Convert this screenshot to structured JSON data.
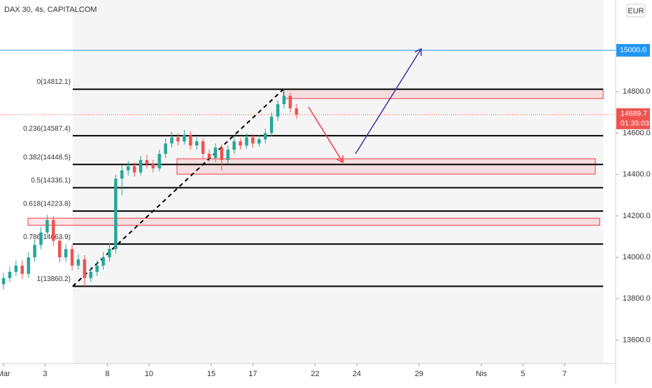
{
  "chart_data": {
    "type": "candlestick",
    "title": "DAX 30, 4s, CAPITALCOM",
    "currency": "EUR",
    "x": [
      0,
      0.3,
      0.6,
      0.9,
      1.2,
      1.5,
      1.8,
      2.1,
      2.4,
      2.7,
      3.0,
      3.3,
      3.6,
      3.9,
      4.2,
      4.5,
      4.8,
      5.1,
      5.4,
      5.7,
      6.0,
      6.3,
      6.6,
      6.9,
      7.2,
      7.5,
      7.8,
      8.1,
      8.4,
      8.7,
      9.0,
      9.3,
      9.6,
      9.9,
      10.2,
      10.5,
      10.8,
      11.1,
      11.4,
      11.7,
      12.0,
      12.3,
      12.6,
      12.9,
      13.2,
      13.5,
      13.8,
      14.1
    ],
    "open": [
      13870,
      13900,
      13930,
      13960,
      13920,
      14000,
      14060,
      14120,
      14180,
      14080,
      14000,
      14040,
      13960,
      13990,
      13900,
      13930,
      13960,
      14000,
      14040,
      14380,
      14420,
      14440,
      14410,
      14470,
      14450,
      14430,
      14500,
      14550,
      14580,
      14560,
      14590,
      14540,
      14560,
      14500,
      14480,
      14530,
      14470,
      14520,
      14560,
      14540,
      14580,
      14550,
      14570,
      14600,
      14680,
      14740,
      14780,
      14720
    ],
    "high": [
      13925,
      13955,
      13985,
      13985,
      14025,
      14085,
      14145,
      14205,
      14200,
      14100,
      14065,
      14060,
      14015,
      14010,
      13955,
      13985,
      14025,
      14070,
      14400,
      14445,
      14465,
      14460,
      14490,
      14495,
      14470,
      14520,
      14575,
      14605,
      14600,
      14615,
      14610,
      14580,
      14575,
      14520,
      14550,
      14545,
      14540,
      14580,
      14575,
      14600,
      14595,
      14590,
      14620,
      14700,
      14760,
      14812.1,
      14795,
      14740
    ],
    "low": [
      13845,
      13880,
      13910,
      13895,
      13900,
      13980,
      14040,
      14100,
      14055,
      13975,
      13980,
      13935,
      13940,
      13860.2,
      13880,
      13910,
      13940,
      13980,
      14020,
      14300,
      14395,
      14390,
      14395,
      14430,
      14410,
      14415,
      14480,
      14530,
      14540,
      14545,
      14520,
      14520,
      14475,
      14460,
      14460,
      14420,
      14450,
      14500,
      14520,
      14525,
      14530,
      14535,
      14550,
      14585,
      14660,
      14720,
      14700,
      14670
    ],
    "close": [
      13900,
      13930,
      13960,
      13920,
      14000,
      14060,
      14120,
      14180,
      14080,
      14000,
      14040,
      13960,
      13990,
      13900,
      13930,
      13960,
      14000,
      14040,
      14380,
      14420,
      14440,
      14410,
      14470,
      14450,
      14430,
      14500,
      14550,
      14580,
      14560,
      14590,
      14540,
      14560,
      14500,
      14480,
      14530,
      14470,
      14520,
      14560,
      14540,
      14580,
      14550,
      14570,
      14600,
      14680,
      14740,
      14780,
      14720,
      14689.7
    ],
    "up_color": "#26a69a",
    "down_color": "#ef5350",
    "countdown": "01:35:03",
    "xlim": [
      -0.17,
      29.46
    ],
    "ylim": [
      13487,
      15243
    ],
    "xticks": [
      {
        "value": 0,
        "label": "Mar"
      },
      {
        "value": 2,
        "label": "3"
      },
      {
        "value": 5,
        "label": "8"
      },
      {
        "value": 7,
        "label": "10"
      },
      {
        "value": 10,
        "label": "15"
      },
      {
        "value": 12,
        "label": "17"
      },
      {
        "value": 15,
        "label": "22"
      },
      {
        "value": 17,
        "label": "24"
      },
      {
        "value": 20,
        "label": "29"
      },
      {
        "value": 23,
        "label": "Nis"
      },
      {
        "value": 25,
        "label": "5"
      },
      {
        "value": 27,
        "label": "7"
      }
    ],
    "yticks": [
      {
        "value": 13600,
        "label": "13600.0"
      },
      {
        "value": 13800,
        "label": "13800.0"
      },
      {
        "value": 14000,
        "label": "14000.0"
      },
      {
        "value": 14200,
        "label": "14200.0"
      },
      {
        "value": 14400,
        "label": "14400.0"
      },
      {
        "value": 14600,
        "label": "14600.0"
      },
      {
        "value": 14800,
        "label": "14800.0"
      }
    ],
    "hline": {
      "value": 15000,
      "label": "15000.0",
      "color": "#2196f3"
    },
    "fib": {
      "x": [
        3.33,
        28.86
      ],
      "levels": [
        {
          "label": "0(14812.1)",
          "value": 14812.1
        },
        {
          "label": "0.236(14587.4)",
          "value": 14587.4
        },
        {
          "label": "0.382(14448.5)",
          "value": 14448.5
        },
        {
          "label": "0.5(14336.1)",
          "value": 14336.1
        },
        {
          "label": "0.618(14223.8)",
          "value": 14223.8
        },
        {
          "label": "0.786(14063.9)",
          "value": 14063.9
        },
        {
          "label": "1(13860.2)",
          "value": 13860.2
        }
      ]
    },
    "trend_line": {
      "x": [
        3.33,
        13.47
      ],
      "y": [
        13860.2,
        14812.1
      ]
    },
    "zones": [
      {
        "x": [
          13.47,
          28.86
        ],
        "y": [
          14767,
          14811
        ]
      },
      {
        "x": [
          8.35,
          28.48
        ],
        "y": [
          14402,
          14476
        ]
      },
      {
        "x": [
          1.18,
          28.69
        ],
        "y": [
          14155,
          14189
        ]
      }
    ],
    "zone_color": "#f23645",
    "arrows": [
      {
        "x": [
          14.68,
          16.33
        ],
        "y": [
          14726,
          14459
        ],
        "color": "#f23645"
      },
      {
        "x": [
          16.94,
          20.1
        ],
        "y": [
          14500,
          15007
        ],
        "color": "#3f2fa8"
      }
    ]
  }
}
